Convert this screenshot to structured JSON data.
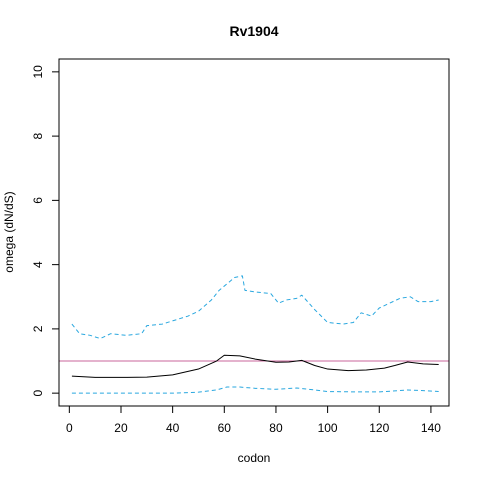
{
  "chart_data": {
    "type": "line",
    "title": "Rv1904",
    "xlabel": "codon",
    "ylabel": "omega (dN/dS)",
    "xlim": [
      -4,
      147
    ],
    "ylim": [
      -0.4,
      10.4
    ],
    "xticks": [
      0,
      20,
      40,
      60,
      80,
      100,
      120,
      140
    ],
    "yticks": [
      0,
      2,
      4,
      6,
      8,
      10
    ],
    "grid": false,
    "reference_line": {
      "y": 1,
      "color": "#c8649b"
    },
    "series": [
      {
        "style": "solid",
        "color": "#000000",
        "x": [
          1,
          10,
          20,
          30,
          40,
          50,
          57,
          60,
          66,
          72,
          80,
          85,
          90,
          95,
          100,
          108,
          115,
          122,
          126,
          131,
          137,
          143
        ],
        "y": [
          0.53,
          0.49,
          0.49,
          0.5,
          0.57,
          0.75,
          1.0,
          1.18,
          1.16,
          1.06,
          0.96,
          0.97,
          1.02,
          0.86,
          0.75,
          0.7,
          0.72,
          0.78,
          0.86,
          0.97,
          0.91,
          0.89
        ]
      },
      {
        "style": "dashed",
        "color": "#29a7df",
        "x": [
          1,
          4,
          8,
          12,
          16,
          22,
          28,
          30,
          36,
          38,
          42,
          46,
          50,
          55,
          58,
          61,
          64,
          67,
          68,
          72,
          78,
          81,
          84,
          88,
          90,
          95,
          100,
          106,
          110,
          113,
          117,
          120,
          124,
          128,
          132,
          135,
          140,
          143
        ],
        "y": [
          2.15,
          1.85,
          1.8,
          1.7,
          1.85,
          1.8,
          1.85,
          2.1,
          2.15,
          2.2,
          2.3,
          2.4,
          2.55,
          2.9,
          3.2,
          3.4,
          3.6,
          3.65,
          3.2,
          3.15,
          3.1,
          2.8,
          2.9,
          2.95,
          3.05,
          2.6,
          2.2,
          2.15,
          2.2,
          2.5,
          2.4,
          2.65,
          2.8,
          2.95,
          3.0,
          2.85,
          2.85,
          2.9
        ]
      },
      {
        "style": "dashed",
        "color": "#29a7df",
        "x": [
          1,
          20,
          40,
          50,
          57,
          61,
          66,
          72,
          80,
          88,
          95,
          100,
          110,
          120,
          126,
          131,
          137,
          143
        ],
        "y": [
          0.0,
          0.0,
          0.0,
          0.03,
          0.1,
          0.19,
          0.19,
          0.15,
          0.12,
          0.16,
          0.1,
          0.05,
          0.04,
          0.04,
          0.07,
          0.1,
          0.08,
          0.05
        ]
      }
    ]
  }
}
